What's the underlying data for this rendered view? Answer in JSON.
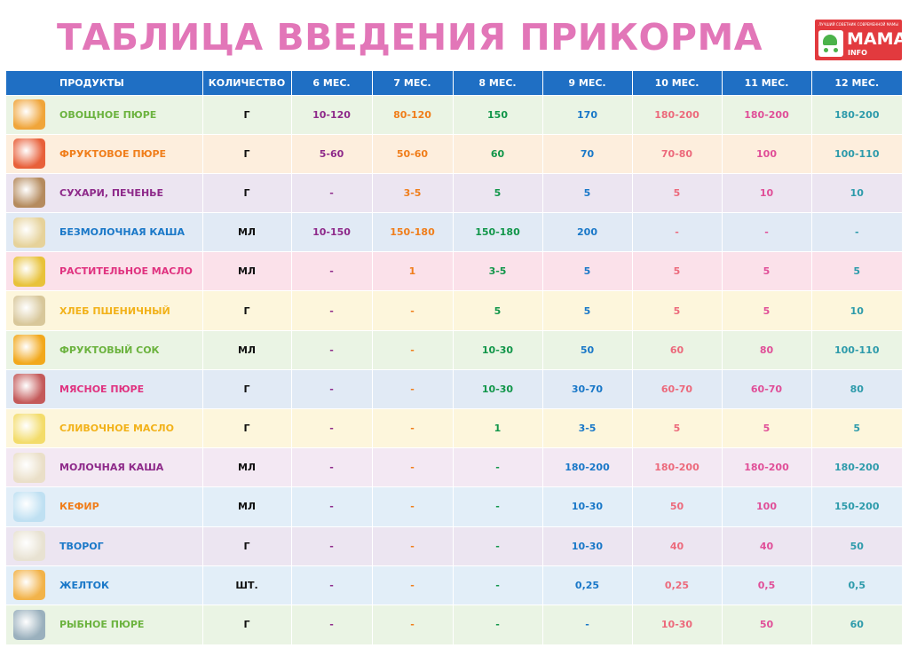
{
  "title": "ТАБЛИЦА ВВЕДЕНИЯ ПРИКОРМА",
  "logo": {
    "tagline": "ЛУЧШИЙ СОВЕТНИК СОВРЕМЕННОЙ МАМЫ",
    "main": "МАМА",
    "sub": "INFO",
    "icon": "stroller-icon",
    "color": "#e23a3e"
  },
  "header": {
    "product": "ПРОДУКТЫ",
    "quantity": "КОЛИЧЕСТВО",
    "months": [
      "6 МЕС.",
      "7 МЕС.",
      "8 МЕС.",
      "9 МЕС.",
      "10 МЕС.",
      "11 МЕС.",
      "12 МЕС."
    ],
    "color": "#1f6fc4"
  },
  "month_colors": [
    "#8e2a8a",
    "#f07e1b",
    "#12964a",
    "#1a78c8",
    "#ec6a7c",
    "#e04f98",
    "#2e9bab"
  ],
  "rows": [
    {
      "name": "ОВОЩНОЕ ПЮРЕ",
      "unit": "Г",
      "values": [
        "10-120",
        "80-120",
        "150",
        "170",
        "180-200",
        "180-200",
        "180-200"
      ],
      "name_color": "#6cb33f",
      "bg": "#eaf4e4",
      "image": "vegetable-puree-image",
      "thumb": "#f0a53a"
    },
    {
      "name": "ФРУКТОВОЕ ПЮРЕ",
      "unit": "Г",
      "values": [
        "5-60",
        "50-60",
        "60",
        "70",
        "70-80",
        "100",
        "100-110"
      ],
      "name_color": "#f07e1b",
      "bg": "#fdeedd",
      "image": "fruit-puree-image",
      "thumb": "#e8603a"
    },
    {
      "name": "СУХАРИ, ПЕЧЕНЬЕ",
      "unit": "Г",
      "values": [
        "-",
        "3-5",
        "5",
        "5",
        "5",
        "10",
        "10"
      ],
      "name_color": "#8e2a8a",
      "bg": "#ece5f1",
      "image": "biscuits-image",
      "thumb": "#b58b5e"
    },
    {
      "name": "БЕЗМОЛОЧНАЯ КАША",
      "unit": "МЛ",
      "values": [
        "10-150",
        "150-180",
        "150-180",
        "200",
        "-",
        "-",
        "-"
      ],
      "name_color": "#1a78c8",
      "bg": "#e1eaf5",
      "image": "dairy-free-porridge-image",
      "thumb": "#e6d29a"
    },
    {
      "name": "РАСТИТЕЛЬНОЕ МАСЛО",
      "unit": "МЛ",
      "values": [
        "-",
        "1",
        "3-5",
        "5",
        "5",
        "5",
        "5"
      ],
      "name_color": "#e03380",
      "bg": "#fbe1ea",
      "image": "vegetable-oil-image",
      "thumb": "#e8c23a"
    },
    {
      "name": "ХЛЕБ ПШЕНИЧНЫЙ",
      "unit": "Г",
      "values": [
        "-",
        "-",
        "5",
        "5",
        "5",
        "5",
        "10"
      ],
      "name_color": "#f2b21a",
      "bg": "#fdf6dc",
      "image": "wheat-bread-image",
      "thumb": "#d8c79a"
    },
    {
      "name": "ФРУКТОВЫЙ СОК",
      "unit": "МЛ",
      "values": [
        "-",
        "-",
        "10-30",
        "50",
        "60",
        "80",
        "100-110"
      ],
      "name_color": "#6cb33f",
      "bg": "#eaf4e4",
      "image": "fruit-juice-image",
      "thumb": "#f2a81c"
    },
    {
      "name": "МЯСНОЕ ПЮРЕ",
      "unit": "Г",
      "values": [
        "-",
        "-",
        "10-30",
        "30-70",
        "60-70",
        "60-70",
        "80"
      ],
      "name_color": "#e03380",
      "bg": "#e1eaf5",
      "image": "meat-puree-image",
      "thumb": "#c45a5a"
    },
    {
      "name": "СЛИВОЧНОЕ МАСЛО",
      "unit": "Г",
      "values": [
        "-",
        "-",
        "1",
        "3-5",
        "5",
        "5",
        "5"
      ],
      "name_color": "#f2b21a",
      "bg": "#fdf6dc",
      "image": "butter-image",
      "thumb": "#f3dc6a"
    },
    {
      "name": "МОЛОЧНАЯ КАША",
      "unit": "МЛ",
      "values": [
        "-",
        "-",
        "-",
        "180-200",
        "180-200",
        "180-200",
        "180-200"
      ],
      "name_color": "#8e2a8a",
      "bg": "#f3e8f3",
      "image": "milk-porridge-image",
      "thumb": "#eadfc8"
    },
    {
      "name": "КЕФИР",
      "unit": "МЛ",
      "values": [
        "-",
        "-",
        "-",
        "10-30",
        "50",
        "100",
        "150-200"
      ],
      "name_color": "#f07e1b",
      "bg": "#e2eef8",
      "image": "kefir-image",
      "thumb": "#bfe0f2"
    },
    {
      "name": "ТВОРОГ",
      "unit": "Г",
      "values": [
        "-",
        "-",
        "-",
        "10-30",
        "40",
        "40",
        "50"
      ],
      "name_color": "#1a78c8",
      "bg": "#ece5f1",
      "image": "cottage-cheese-image",
      "thumb": "#e8e2d2"
    },
    {
      "name": "ЖЕЛТОК",
      "unit": "ШТ.",
      "values": [
        "-",
        "-",
        "-",
        "0,25",
        "0,25",
        "0,5",
        "0,5"
      ],
      "name_color": "#1a78c8",
      "bg": "#e2eef8",
      "image": "egg-yolk-image",
      "thumb": "#f2b34a"
    },
    {
      "name": "РЫБНОЕ ПЮРЕ",
      "unit": "Г",
      "values": [
        "-",
        "-",
        "-",
        "-",
        "10-30",
        "50",
        "60"
      ],
      "name_color": "#6cb33f",
      "bg": "#eaf4e4",
      "image": "fish-puree-image",
      "thumb": "#9ab0bd"
    }
  ]
}
